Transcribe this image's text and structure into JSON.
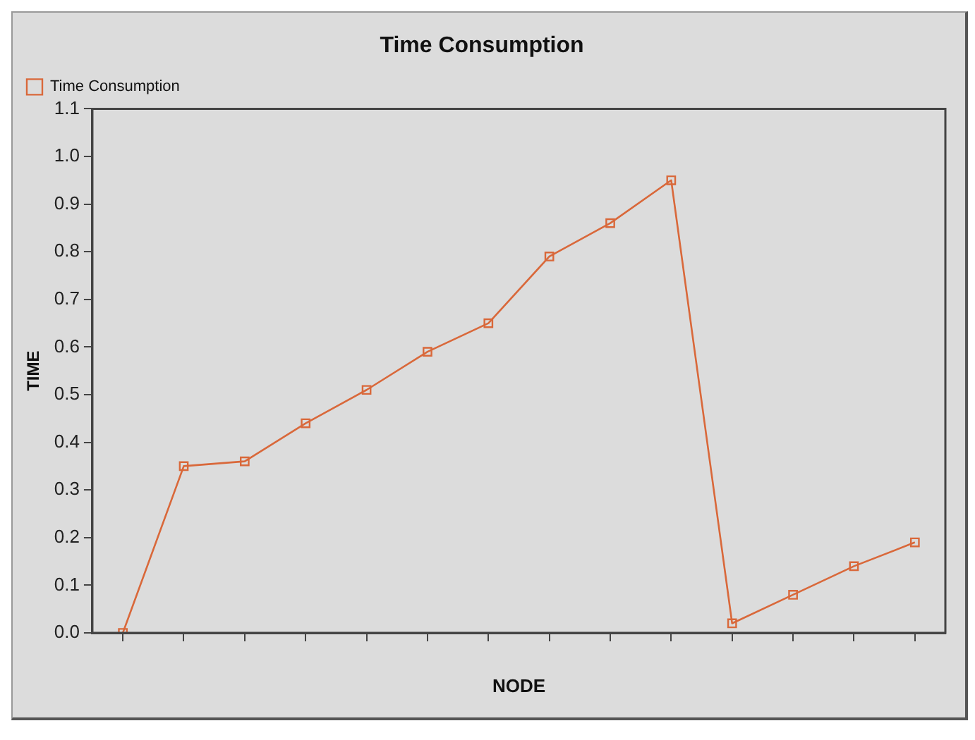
{
  "chart_data": {
    "type": "line",
    "title": "Time Consumption",
    "xlabel": "NODE",
    "ylabel": "TIME",
    "categories": [
      null,
      null,
      null,
      null,
      null,
      null,
      null,
      null,
      null,
      null,
      null,
      null,
      null,
      null
    ],
    "series": [
      {
        "name": "Time Consumption",
        "color": "#d9683a",
        "values": [
          0.0,
          0.35,
          0.36,
          0.44,
          0.51,
          0.59,
          0.65,
          0.79,
          0.86,
          0.95,
          0.02,
          0.08,
          0.14,
          0.19
        ]
      }
    ],
    "ylim": [
      0,
      1.1
    ],
    "yticks": [
      {
        "value": 0,
        "label": "0.0"
      },
      {
        "value": 0.1,
        "label": "0.1"
      },
      {
        "value": 0.2,
        "label": "0.2"
      },
      {
        "value": 0.3,
        "label": "0.3"
      },
      {
        "value": 0.4,
        "label": "0.4"
      },
      {
        "value": 0.5,
        "label": "0.5"
      },
      {
        "value": 0.6,
        "label": "0.6"
      },
      {
        "value": 0.7,
        "label": "0.7"
      },
      {
        "value": 0.8,
        "label": "0.8"
      },
      {
        "value": 0.9,
        "label": "0.9"
      },
      {
        "value": 1.0,
        "label": "1.0"
      },
      {
        "value": 1.1,
        "label": "1.1"
      }
    ],
    "grid": false,
    "legend": "top left",
    "marker": "square",
    "line_style": "solid"
  }
}
